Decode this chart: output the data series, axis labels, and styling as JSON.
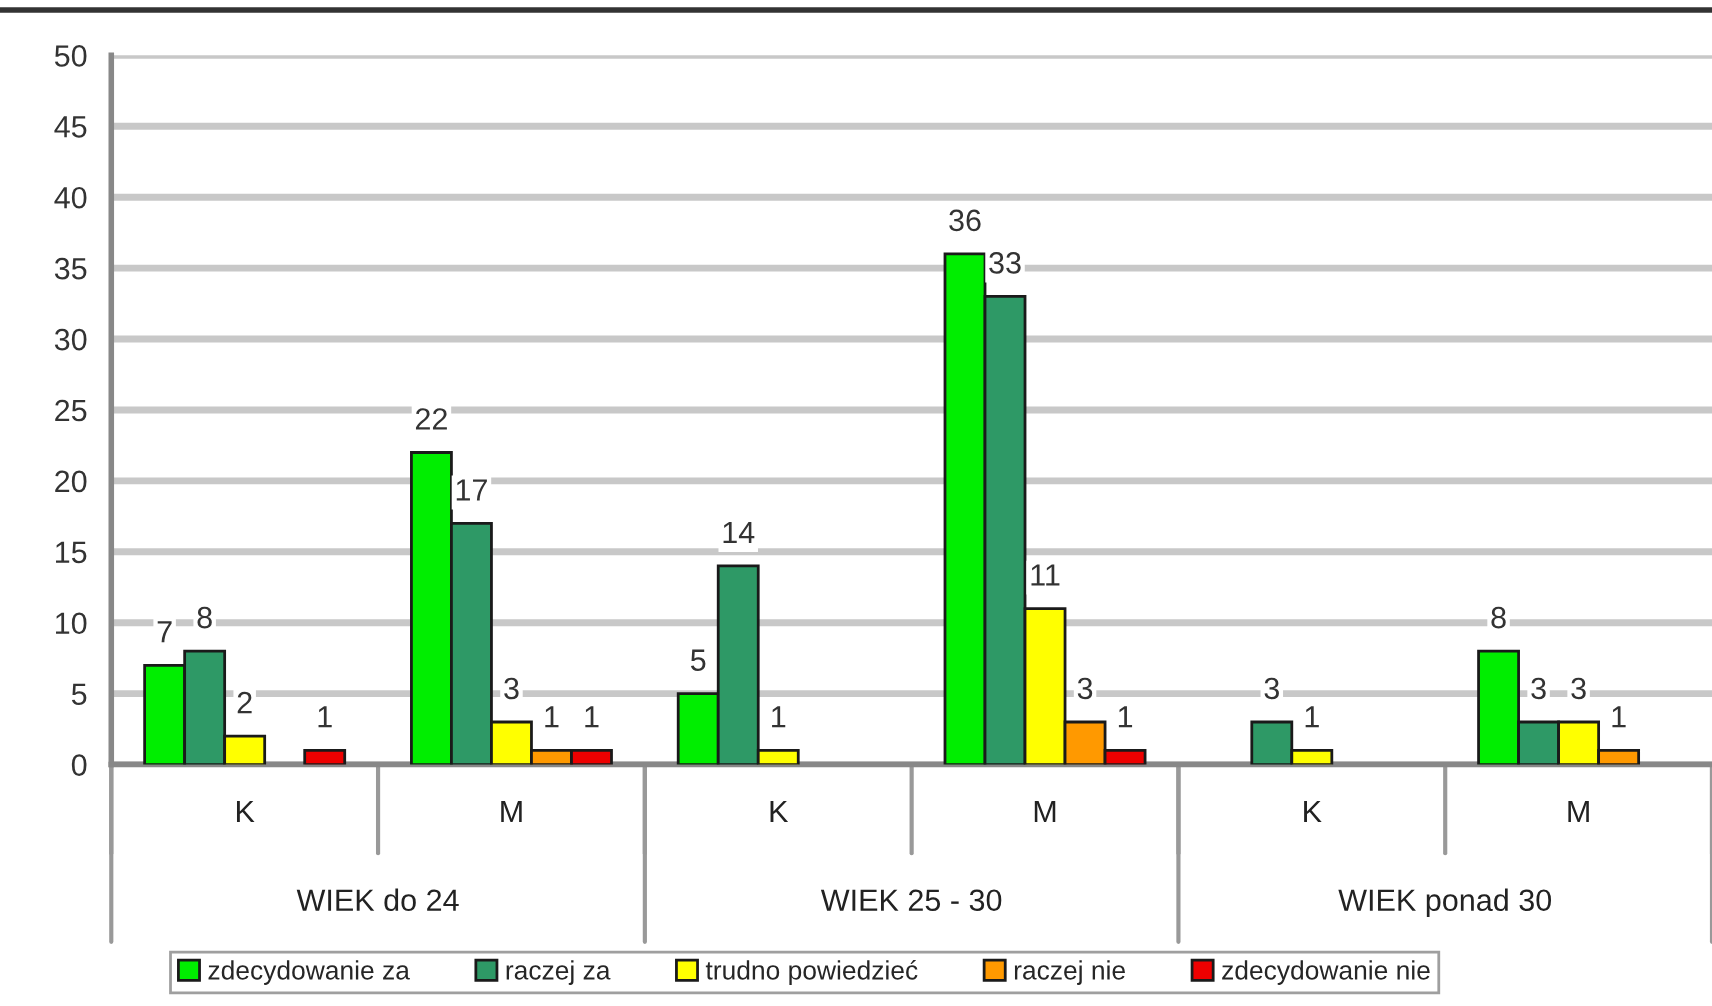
{
  "chart_data": {
    "type": "bar",
    "categories": [
      "K",
      "M",
      "K",
      "M",
      "K",
      "M"
    ],
    "series": [
      {
        "name": "zdecydowanie za",
        "color": "#00ee00",
        "values": [
          7,
          22,
          5,
          36,
          null,
          8
        ]
      },
      {
        "name": "raczej za",
        "color": "#2e9966",
        "values": [
          8,
          17,
          14,
          33,
          3,
          3
        ]
      },
      {
        "name": "trudno powiedzieć",
        "color": "#ffff00",
        "values": [
          2,
          3,
          1,
          11,
          1,
          3
        ]
      },
      {
        "name": "raczej nie",
        "color": "#ff9900",
        "values": [
          null,
          1,
          null,
          3,
          null,
          1
        ]
      },
      {
        "name": "zdecydowanie nie",
        "color": "#ee0000",
        "values": [
          1,
          1,
          null,
          1,
          null,
          null
        ]
      }
    ],
    "annotations": [
      "WIEK do 24",
      "WIEK 25 - 30",
      "WIEK ponad 30"
    ],
    "ylim": [
      0,
      50
    ],
    "yticks": [
      0,
      5,
      10,
      15,
      20,
      25,
      30,
      35,
      40,
      45,
      50
    ],
    "grid": "y",
    "legend": "bottom",
    "data_labels": true
  }
}
